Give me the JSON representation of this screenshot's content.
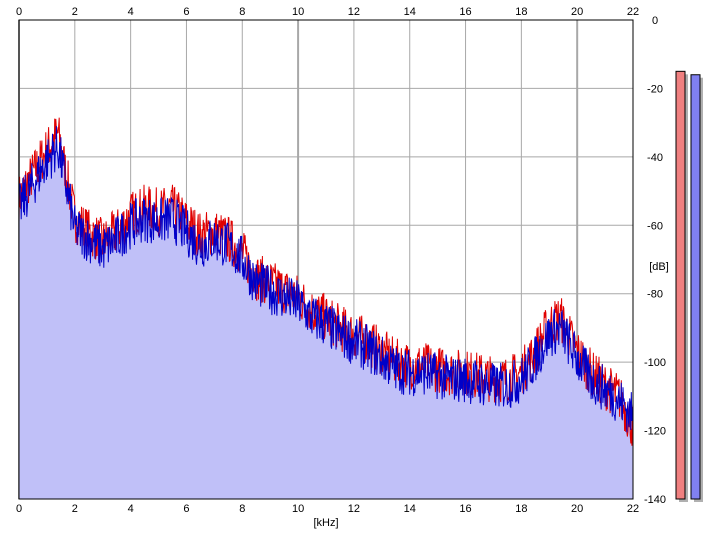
{
  "chart_data": {
    "type": "area",
    "title": "",
    "xlabel": "[kHz]",
    "ylabel": "[dB]",
    "xlim": [
      0,
      22
    ],
    "ylim": [
      -140,
      0
    ],
    "x_ticks": [
      "0",
      "2",
      "4",
      "6",
      "8",
      "10",
      "12",
      "14",
      "16",
      "18",
      "20",
      "22"
    ],
    "y_ticks": [
      "0",
      "-20",
      "-40",
      "-60",
      "-80",
      "-100",
      "-120",
      "-140"
    ],
    "grid": true,
    "series": [
      {
        "color": "#e00000",
        "x": [
          0,
          0.5,
          1,
          1.4,
          2,
          2.5,
          3,
          3.5,
          4,
          4.5,
          5,
          5.5,
          6,
          6.5,
          7,
          7.5,
          8,
          8.5,
          9,
          9.5,
          10,
          10.5,
          11,
          11.5,
          12,
          12.5,
          13,
          13.5,
          14,
          14.5,
          15,
          15.5,
          16,
          16.5,
          17,
          17.5,
          18,
          18.5,
          19,
          19.4,
          20,
          20.5,
          21,
          21.5,
          22
        ],
        "values": [
          -52,
          -45,
          -38,
          -33,
          -58,
          -62,
          -65,
          -62,
          -57,
          -55,
          -56,
          -55,
          -59,
          -63,
          -62,
          -64,
          -68,
          -75,
          -77,
          -79,
          -81,
          -85,
          -87,
          -90,
          -92,
          -94,
          -97,
          -100,
          -101,
          -101,
          -102,
          -103,
          -103,
          -104,
          -105,
          -105,
          -103,
          -97,
          -89,
          -87,
          -97,
          -103,
          -107,
          -110,
          -119
        ]
      },
      {
        "color": "#0000c8",
        "x": [
          0,
          0.5,
          1,
          1.4,
          2,
          2.5,
          3,
          3.5,
          4,
          4.5,
          5,
          5.5,
          6,
          6.5,
          7,
          7.5,
          8,
          8.5,
          9,
          9.5,
          10,
          10.5,
          11,
          11.5,
          12,
          12.5,
          13,
          13.5,
          14,
          14.5,
          15,
          15.5,
          16,
          16.5,
          17,
          17.5,
          18,
          18.5,
          19,
          19.4,
          20,
          20.5,
          21,
          21.5,
          22
        ],
        "values": [
          -55,
          -48,
          -41,
          -37,
          -61,
          -64,
          -67,
          -64,
          -60,
          -58,
          -59,
          -58,
          -62,
          -66,
          -64,
          -66,
          -70,
          -77,
          -79,
          -81,
          -83,
          -87,
          -89,
          -92,
          -94,
          -96,
          -99,
          -102,
          -103,
          -103,
          -104,
          -105,
          -105,
          -106,
          -107,
          -107,
          -105,
          -99,
          -92,
          -90,
          -99,
          -105,
          -108,
          -111,
          -116
        ]
      }
    ]
  },
  "meters": [
    {
      "color": "#f08080",
      "level_db": -15
    },
    {
      "color": "#8080f0",
      "level_db": -16
    }
  ],
  "colors": {
    "fill": "#c0c0f8",
    "grid": "#a8a8a8",
    "frame": "#000000"
  }
}
